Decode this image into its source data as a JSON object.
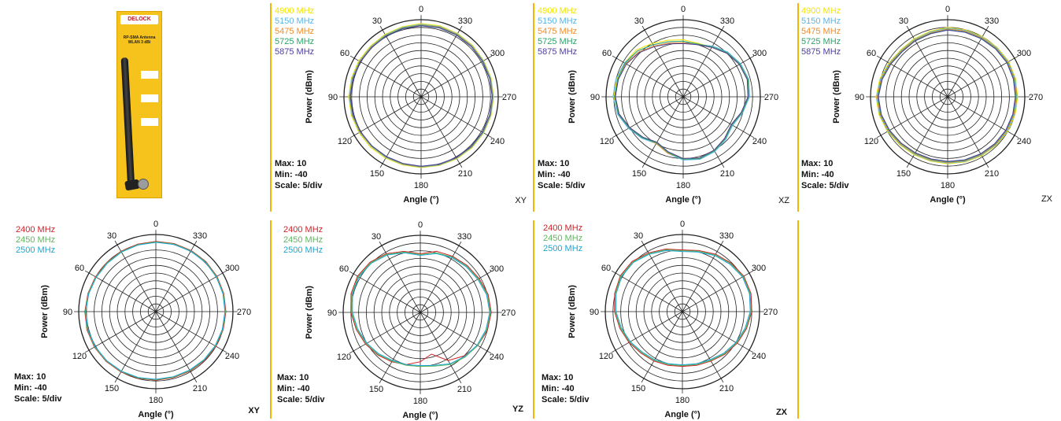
{
  "chart_data": [
    {
      "type": "polar",
      "plane": "XY",
      "legend": [
        {
          "name": "4900 MHz",
          "color": "#f2e600"
        },
        {
          "name": "5150 MHz",
          "color": "#5ab4e8"
        },
        {
          "name": "5475 MHz",
          "color": "#f28c28"
        },
        {
          "name": "5725 MHz",
          "color": "#2ea36a"
        },
        {
          "name": "5875 MHz",
          "color": "#4b3fa0"
        }
      ],
      "ylabel": "Power (dBm)",
      "xlabel": "Angle (°)",
      "angle_ticks": [
        "0",
        "330",
        "300",
        "270",
        "240",
        "210",
        "180",
        "150",
        "120",
        "90",
        "60",
        "30"
      ],
      "max_label": "Max: 10",
      "min_label": "Min: -40",
      "scale_label": "Scale: 5/div",
      "rmax": 10,
      "rmin": -40,
      "series": [
        {
          "name": "4900 MHz",
          "values": [
            7.5,
            7,
            6.8,
            6.5,
            6.7,
            6.8,
            7,
            6.8,
            6.5,
            6.3,
            6,
            5.8,
            5.9,
            6.1,
            6.4,
            6.7,
            6.9,
            7,
            7.1,
            7,
            6.9,
            7.2,
            7.4,
            7.6
          ]
        },
        {
          "name": "5150 MHz",
          "values": [
            7,
            6.6,
            6.3,
            6,
            6.2,
            6.4,
            6.6,
            6.3,
            6,
            5.7,
            5.5,
            5.4,
            5.6,
            5.8,
            6.1,
            6.4,
            6.6,
            6.7,
            6.8,
            6.7,
            6.6,
            6.8,
            7,
            7.1
          ]
        },
        {
          "name": "5475 MHz",
          "values": [
            6.6,
            6.2,
            5.9,
            5.7,
            5.9,
            6,
            6.2,
            6,
            5.7,
            5.4,
            5.2,
            5.2,
            5.4,
            5.6,
            5.9,
            6.1,
            6.3,
            6.4,
            6.5,
            6.4,
            6.3,
            6.5,
            6.7,
            6.8
          ]
        },
        {
          "name": "5725 MHz",
          "values": [
            6.3,
            6,
            5.7,
            5.4,
            5.6,
            5.8,
            6,
            5.8,
            5.5,
            5.2,
            5,
            5,
            5.2,
            5.4,
            5.7,
            5.9,
            6.1,
            6.2,
            6.3,
            6.2,
            6.1,
            6.2,
            6.4,
            6.5
          ]
        },
        {
          "name": "5875 MHz",
          "values": [
            6,
            5.7,
            5.4,
            5.2,
            5.4,
            5.6,
            5.8,
            5.6,
            5.3,
            5,
            4.8,
            4.8,
            5,
            5.2,
            5.5,
            5.7,
            5.9,
            6,
            6.1,
            6,
            5.9,
            6,
            6.1,
            6.2
          ]
        }
      ]
    },
    {
      "type": "polar",
      "plane": "XZ",
      "legend": [
        {
          "name": "4900 MHz",
          "color": "#f2e600"
        },
        {
          "name": "5150 MHz",
          "color": "#5ab4e8"
        },
        {
          "name": "5475 MHz",
          "color": "#f28c28"
        },
        {
          "name": "5725 MHz",
          "color": "#2ea36a"
        },
        {
          "name": "5875 MHz",
          "color": "#4b3fa0"
        }
      ],
      "ylabel": "Power (dBm)",
      "xlabel": "Angle (°)",
      "angle_ticks": [
        "0",
        "330",
        "300",
        "270",
        "240",
        "210",
        "180",
        "150",
        "120",
        "90",
        "60",
        "30"
      ],
      "max_label": "Max: 10",
      "min_label": "Min: -40",
      "scale_label": "Scale: 5/div",
      "rmax": 10,
      "rmin": -40,
      "series": [
        {
          "name": "4900 MHz",
          "values": [
            -3,
            -2,
            0,
            3,
            4,
            4.5,
            5,
            3,
            0,
            -3,
            -6,
            -3,
            0,
            1,
            0,
            -2,
            -4,
            -1,
            2,
            3,
            2,
            0,
            -3,
            -4
          ]
        },
        {
          "name": "5150 MHz",
          "values": [
            -4,
            -3,
            -1,
            2,
            4,
            5,
            5.5,
            4,
            1,
            -2,
            -5,
            -2,
            1,
            2,
            1,
            -1,
            -3,
            0,
            3,
            4,
            3,
            1,
            -2,
            -5
          ]
        },
        {
          "name": "5475 MHz",
          "values": [
            -5,
            -4,
            -2,
            1,
            3,
            4,
            4,
            3,
            0,
            -3,
            -5,
            -2,
            0,
            1,
            0,
            -2,
            -4,
            -1,
            2,
            3,
            2,
            0,
            -3,
            -5
          ]
        },
        {
          "name": "5725 MHz",
          "values": [
            -4,
            -3,
            -1,
            2,
            3.5,
            4,
            4.5,
            3.5,
            0.5,
            -2.5,
            -5.5,
            -2.5,
            0.5,
            1.5,
            0.5,
            -1.5,
            -3.5,
            -0.5,
            2.5,
            3.5,
            2.5,
            0.5,
            -2.5,
            -4.5
          ]
        },
        {
          "name": "5875 MHz",
          "values": [
            -5.5,
            -4.5,
            -2.5,
            0.5,
            2.5,
            3.5,
            4,
            3,
            0,
            -3,
            -6,
            -3,
            0,
            1,
            0,
            -2,
            -4,
            -1,
            2,
            3,
            2,
            0,
            -3,
            -5
          ]
        }
      ]
    },
    {
      "type": "polar",
      "plane": "ZX",
      "legend": [
        {
          "name": "4900 MHz",
          "color": "#f2e600"
        },
        {
          "name": "5150 MHz",
          "color": "#5ab4e8"
        },
        {
          "name": "5475 MHz",
          "color": "#f28c28"
        },
        {
          "name": "5725 MHz",
          "color": "#2ea36a"
        },
        {
          "name": "5875 MHz",
          "color": "#4b3fa0"
        }
      ],
      "ylabel": "Power (dBm)",
      "xlabel": "Angle (°)",
      "angle_ticks": [
        "0",
        "330",
        "300",
        "270",
        "240",
        "210",
        "180",
        "150",
        "120",
        "90",
        "60",
        "30"
      ],
      "max_label": "Max: 10",
      "min_label": "Min: -40",
      "scale_label": "Scale: 5/div",
      "rmax": 10,
      "rmin": -40,
      "series": [
        {
          "name": "4900 MHz",
          "values": [
            5,
            4,
            3.5,
            3,
            4,
            5.5,
            6.5,
            6,
            5,
            4,
            3.5,
            3.2,
            3.4,
            3.8,
            4.2,
            4.6,
            5,
            5.2,
            5.4,
            5.6,
            5.8,
            5.4,
            5,
            5
          ]
        },
        {
          "name": "5150 MHz",
          "values": [
            4.5,
            3.5,
            3,
            2.6,
            3.6,
            5,
            6,
            5.6,
            4.6,
            3.6,
            3,
            2.8,
            3,
            3.4,
            3.8,
            4.2,
            4.6,
            4.8,
            5,
            5.2,
            5.4,
            5,
            4.6,
            4.6
          ]
        },
        {
          "name": "5475 MHz",
          "values": [
            4,
            3,
            2.6,
            2.2,
            3.2,
            4.6,
            5.6,
            5.2,
            4.2,
            3.2,
            2.6,
            2.4,
            2.6,
            3,
            3.4,
            3.8,
            4.2,
            4.4,
            4.6,
            4.8,
            5,
            4.6,
            4.2,
            4.1
          ]
        },
        {
          "name": "5725 MHz",
          "values": [
            3.5,
            2.6,
            2.2,
            1.8,
            2.8,
            4.2,
            5.2,
            4.8,
            3.8,
            2.8,
            2.2,
            2,
            2.2,
            2.6,
            3,
            3.4,
            3.8,
            4,
            4.2,
            4.4,
            4.6,
            4.2,
            3.8,
            3.6
          ]
        },
        {
          "name": "5875 MHz",
          "values": [
            3.2,
            2.3,
            1.9,
            1.5,
            2.5,
            3.9,
            4.9,
            4.5,
            3.5,
            2.5,
            1.9,
            1.7,
            1.9,
            2.3,
            2.7,
            3.1,
            3.5,
            3.7,
            3.9,
            4.1,
            4.3,
            3.9,
            3.5,
            3.3
          ]
        }
      ]
    },
    {
      "type": "polar",
      "plane": "XY",
      "legend": [
        {
          "name": "2400 MHz",
          "color": "#d11f26"
        },
        {
          "name": "2450 MHz",
          "color": "#5cb85c"
        },
        {
          "name": "2500 MHz",
          "color": "#1aa7d6"
        }
      ],
      "ylabel": "Power (dBm)",
      "xlabel": "Angle (°)",
      "angle_ticks": [
        "0",
        "330",
        "300",
        "270",
        "240",
        "210",
        "180",
        "150",
        "120",
        "90",
        "60",
        "30"
      ],
      "max_label": "Max: 10",
      "min_label": "Min: -40",
      "scale_label": "Scale: 5/div",
      "rmax": 10,
      "rmin": -40,
      "series": [
        {
          "name": "2400 MHz",
          "values": [
            5.5,
            5.3,
            5.2,
            5,
            5.2,
            5.6,
            6,
            6.2,
            6,
            5.6,
            5.2,
            4.8,
            4.5,
            4.3,
            4.4,
            4.7,
            5,
            5.2,
            5.4,
            5.6,
            5.8,
            5.9,
            5.8,
            5.7
          ]
        },
        {
          "name": "2450 MHz",
          "values": [
            5.2,
            5,
            4.9,
            4.7,
            4.9,
            5.3,
            5.7,
            5.9,
            5.7,
            5.3,
            4.9,
            4.5,
            4.2,
            4,
            4.1,
            4.4,
            4.7,
            4.9,
            5.1,
            5.3,
            5.5,
            5.6,
            5.5,
            5.4
          ]
        },
        {
          "name": "2500 MHz",
          "values": [
            4.9,
            4.7,
            4.6,
            4.4,
            4.6,
            5,
            5.4,
            5.6,
            5.4,
            5,
            4.6,
            4.2,
            3.9,
            3.7,
            3.8,
            4.1,
            4.4,
            4.6,
            4.8,
            5,
            5.2,
            5.3,
            5.2,
            5.1
          ]
        }
      ]
    },
    {
      "type": "polar",
      "plane": "YZ",
      "legend": [
        {
          "name": "2400 MHz",
          "color": "#d11f26"
        },
        {
          "name": "2450 MHz",
          "color": "#5cb85c"
        },
        {
          "name": "2500 MHz",
          "color": "#1aa7d6"
        }
      ],
      "ylabel": "Power (dBm)",
      "xlabel": "Angle (°)",
      "angle_ticks": [
        "0",
        "330",
        "300",
        "270",
        "240",
        "210",
        "180",
        "150",
        "120",
        "90",
        "60",
        "30"
      ],
      "max_label": "Max: 10",
      "min_label": "Min: -40",
      "scale_label": "Scale: 5/div",
      "rmax": 10,
      "rmin": -40,
      "series": [
        {
          "name": "2400 MHz",
          "values": [
            -2,
            1,
            4,
            6,
            7,
            6.5,
            5,
            3,
            1,
            -1,
            -3,
            -5,
            -8,
            -12,
            -4,
            0,
            3,
            5,
            6,
            5.5,
            4,
            3,
            2,
            1
          ]
        },
        {
          "name": "2450 MHz",
          "values": [
            -2.5,
            0.5,
            3.5,
            5.5,
            6.5,
            6,
            4.5,
            2.5,
            0.5,
            -1.5,
            -3.5,
            -4.5,
            -5,
            -4,
            -1,
            1,
            3,
            4.5,
            5.5,
            5,
            3.5,
            2.5,
            1.5,
            0
          ]
        },
        {
          "name": "2500 MHz",
          "values": [
            -3,
            0,
            3,
            5,
            6,
            5.5,
            4,
            2,
            0,
            -2,
            -4,
            -5,
            -5.5,
            -4.5,
            -1.5,
            0.5,
            2.5,
            4,
            5,
            4.5,
            3,
            2,
            1,
            -0.5
          ]
        }
      ]
    },
    {
      "type": "polar",
      "plane": "ZX",
      "legend": [
        {
          "name": "2400 MHz",
          "color": "#d11f26"
        },
        {
          "name": "2450 MHz",
          "color": "#5cb85c"
        },
        {
          "name": "2500 MHz",
          "color": "#1aa7d6"
        }
      ],
      "ylabel": "Power (dBm)",
      "xlabel": "Angle (°)",
      "angle_ticks": [
        "0",
        "330",
        "300",
        "270",
        "240",
        "210",
        "180",
        "150",
        "120",
        "90",
        "60",
        "30"
      ],
      "max_label": "Max: 10",
      "min_label": "Min: -40",
      "scale_label": "Scale: 5/div",
      "rmax": 10,
      "rmin": -40,
      "series": [
        {
          "name": "2400 MHz",
          "values": [
            0,
            2,
            4,
            6,
            6.5,
            5.5,
            4,
            2,
            0,
            -2,
            -3,
            -4,
            -4.5,
            -4,
            -3,
            -1,
            1,
            3,
            5,
            6,
            6,
            4.5,
            3,
            1
          ]
        },
        {
          "name": "2450 MHz",
          "values": [
            -0.5,
            1.5,
            3.5,
            5.5,
            6,
            5,
            3.5,
            1.5,
            -0.5,
            -2.5,
            -3.5,
            -4.5,
            -5,
            -4.5,
            -3.5,
            -1.5,
            0.5,
            2.5,
            4.5,
            5.5,
            5.5,
            4,
            2.5,
            0.5
          ]
        },
        {
          "name": "2500 MHz",
          "values": [
            -1,
            1,
            3,
            5,
            5.5,
            4.5,
            3,
            1,
            -1,
            -3,
            -4,
            -5,
            -5.5,
            -5,
            -4,
            -2,
            0,
            2,
            4,
            5,
            5,
            3.5,
            2,
            0
          ]
        }
      ]
    }
  ],
  "product": {
    "brand": "DELOCK",
    "title": "RP-SMA Antenna WLAN 3 dBi"
  }
}
